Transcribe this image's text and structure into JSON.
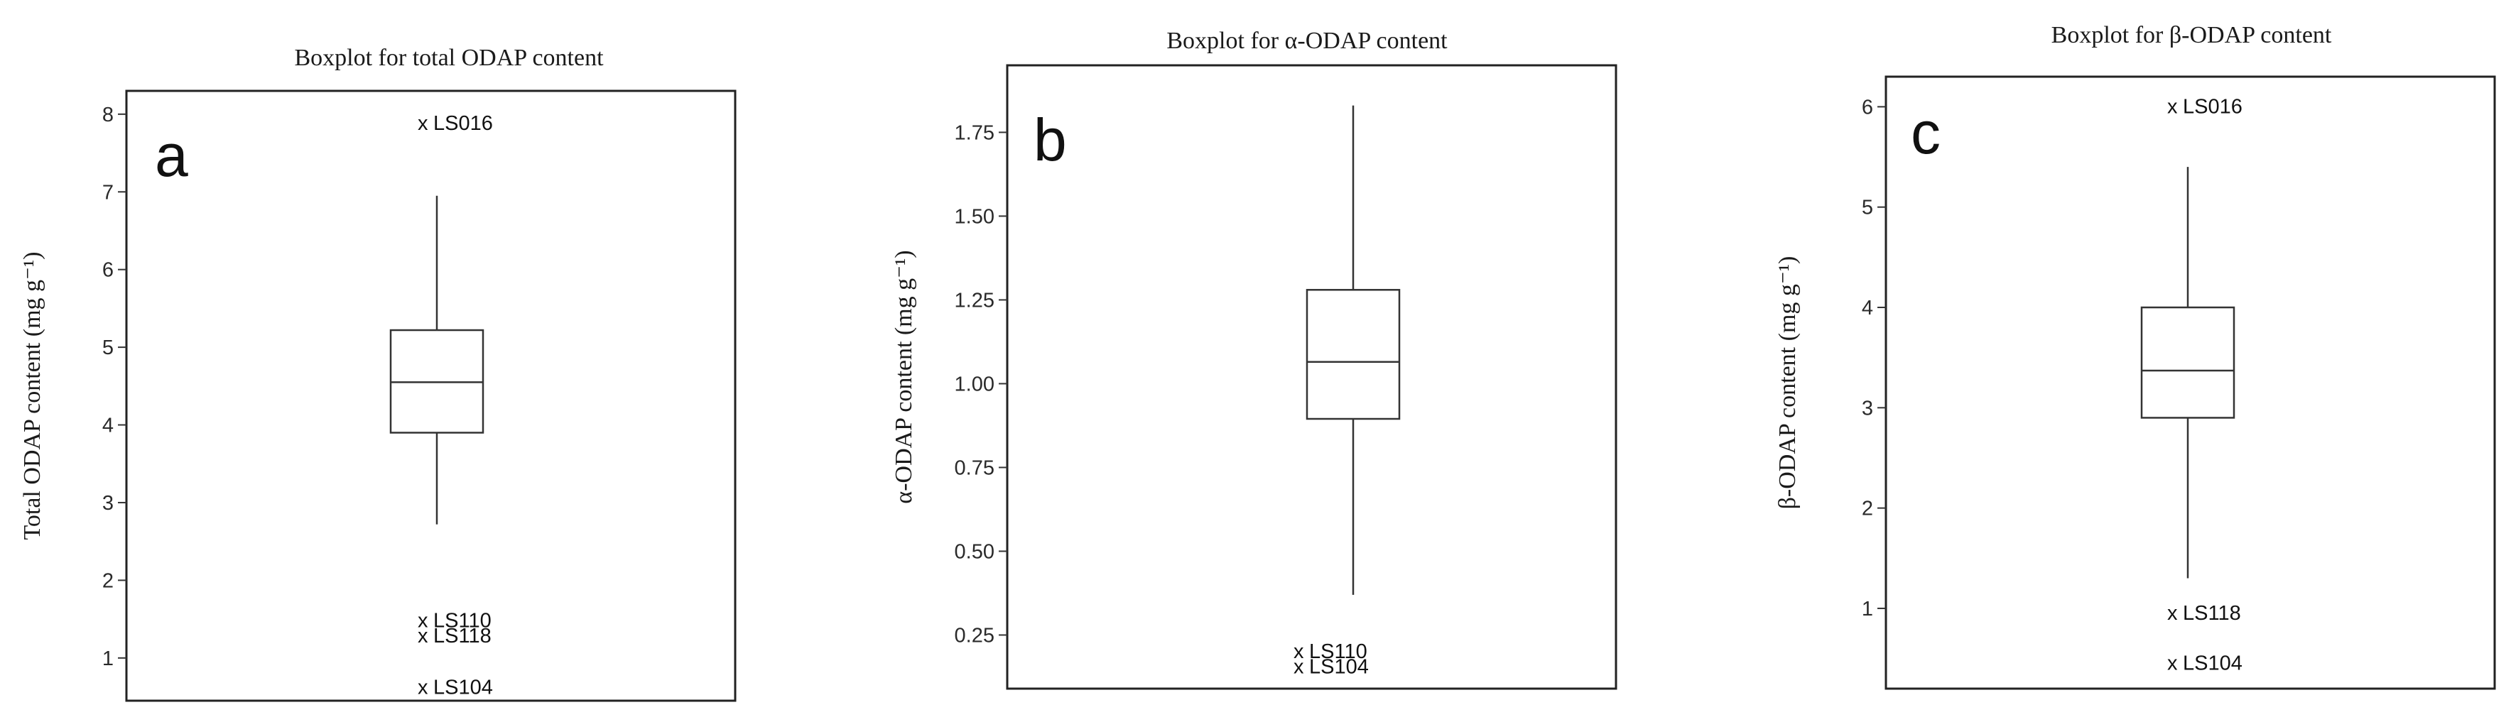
{
  "chart_data": [
    {
      "type": "box",
      "panel": "a",
      "title": "Boxplot for total ODAP content",
      "ylabel": "Total ODAP content (mg g⁻¹)",
      "ylim": [
        0.45,
        8.3
      ],
      "yticks": [
        1,
        2,
        3,
        4,
        5,
        6,
        7,
        8
      ],
      "tick_labels": [
        "1",
        "2",
        "3",
        "4",
        "5",
        "6",
        "7",
        "8"
      ],
      "box": {
        "whisker_low": 2.72,
        "q1": 3.9,
        "median": 4.55,
        "q3": 5.22,
        "whisker_high": 6.95
      },
      "outliers": [
        {
          "label": "LS016",
          "value": 7.88
        },
        {
          "label": "LS110",
          "value": 1.48
        },
        {
          "label": "LS118",
          "value": 1.28
        },
        {
          "label": "LS104",
          "value": 0.62
        }
      ]
    },
    {
      "type": "box",
      "panel": "b",
      "title": "Boxplot for α-ODAP content",
      "ylabel": "α-ODAP content (mg g⁻¹)",
      "ylim": [
        0.09,
        1.95
      ],
      "yticks": [
        0.25,
        0.5,
        0.75,
        1.0,
        1.25,
        1.5,
        1.75
      ],
      "tick_labels": [
        "0.25",
        "0.50",
        "0.75",
        "1.00",
        "1.25",
        "1.50",
        "1.75"
      ],
      "box": {
        "whisker_low": 0.37,
        "q1": 0.895,
        "median": 1.065,
        "q3": 1.28,
        "whisker_high": 1.83
      },
      "outliers": [
        {
          "label": "LS110",
          "value": 0.2
        },
        {
          "label": "LS104",
          "value": 0.155
        }
      ]
    },
    {
      "type": "box",
      "panel": "c",
      "title": "Boxplot for β-ODAP content",
      "ylabel": "β-ODAP content (mg g⁻¹)",
      "ylim": [
        0.2,
        6.3
      ],
      "yticks": [
        1,
        2,
        3,
        4,
        5,
        6
      ],
      "tick_labels": [
        "1",
        "2",
        "3",
        "4",
        "5",
        "6"
      ],
      "box": {
        "whisker_low": 1.3,
        "q1": 2.9,
        "median": 3.37,
        "q3": 4.0,
        "whisker_high": 5.4
      },
      "outliers": [
        {
          "label": "LS016",
          "value": 6.0
        },
        {
          "label": "LS118",
          "value": 0.95
        },
        {
          "label": "LS104",
          "value": 0.45
        }
      ]
    }
  ]
}
